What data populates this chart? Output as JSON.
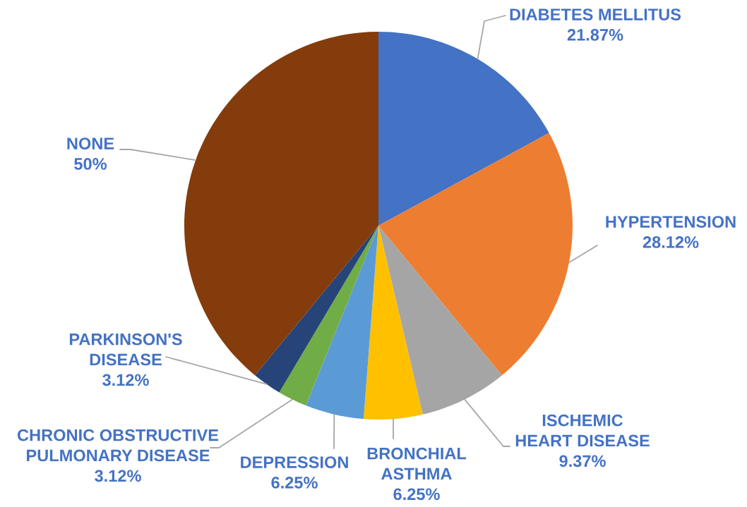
{
  "chart_data": {
    "type": "pie",
    "categories": [
      "DIABETES MELLITUS",
      "HYPERTENSION",
      "ISCHEMIC HEART DISEASE",
      "BRONCHIAL ASTHMA",
      "DEPRESSION",
      "CHRONIC OBSTRUCTIVE PULMONARY DISEASE",
      "PARKINSON'S DISEASE",
      "NONE"
    ],
    "values": [
      21.87,
      28.12,
      9.37,
      6.25,
      6.25,
      3.12,
      3.12,
      50
    ],
    "colors": [
      "#4472c4",
      "#ed7d31",
      "#a5a5a5",
      "#ffc000",
      "#5b9bd5",
      "#70ad47",
      "#264478",
      "#843c0c"
    ],
    "value_labels": [
      "21.87%",
      "28.12%",
      "9.37%",
      "6.25%",
      "6.25%",
      "3.12%",
      "3.12%",
      "50%"
    ]
  }
}
